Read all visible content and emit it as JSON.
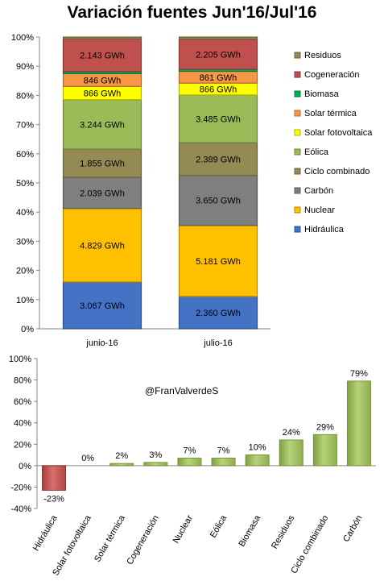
{
  "title": "Variación fuentes Jun'16/Jul'16",
  "credit": "@FranValverdeS",
  "chart_data": [
    {
      "type": "bar",
      "stacked": "percent",
      "categories": [
        "junio-16",
        "julio-16"
      ],
      "ylim": [
        0,
        100
      ],
      "yticks": [
        "0%",
        "10%",
        "20%",
        "30%",
        "40%",
        "50%",
        "60%",
        "70%",
        "80%",
        "90%",
        "100%"
      ],
      "legend_position": "right",
      "series": [
        {
          "name": "Hidráulica",
          "color": "#4472C4",
          "values": [
            3067,
            2360
          ],
          "labels": [
            "3.067 GWh",
            "2.360 GWh"
          ]
        },
        {
          "name": "Nuclear",
          "color": "#FFC000",
          "values": [
            4829,
            5181
          ],
          "labels": [
            "4.829 GWh",
            "5.181 GWh"
          ]
        },
        {
          "name": "Carbón",
          "color": "#7F7F7F",
          "values": [
            2039,
            3650
          ],
          "labels": [
            "2.039 GWh",
            "3.650 GWh"
          ]
        },
        {
          "name": "Ciclo combinado",
          "color": "#948A54",
          "values": [
            1855,
            2389
          ],
          "labels": [
            "1.855 GWh",
            "2.389 GWh"
          ]
        },
        {
          "name": "Eólica",
          "color": "#9BBB59",
          "values": [
            3244,
            3485
          ],
          "labels": [
            "3.244 GWh",
            "3.485 GWh"
          ]
        },
        {
          "name": "Solar fotovoltaica",
          "color": "#FFFF00",
          "values": [
            866,
            866
          ],
          "labels": [
            "866 GWh",
            "866 GWh"
          ]
        },
        {
          "name": "Solar térmica",
          "color": "#F79646",
          "values": [
            846,
            861
          ],
          "labels": [
            "846 GWh",
            "861 GWh"
          ]
        },
        {
          "name": "Biomasa",
          "color": "#00B050",
          "values": [
            130,
            143
          ],
          "labels": [
            "",
            ""
          ]
        },
        {
          "name": "Cogeneración",
          "color": "#C0504D",
          "values": [
            2143,
            2205
          ],
          "labels": [
            "2.143 GWh",
            "2.205 GWh"
          ]
        },
        {
          "name": "Residuos",
          "color": "#948A54",
          "values": [
            120,
            150
          ],
          "labels": [
            "",
            ""
          ]
        }
      ]
    },
    {
      "type": "bar",
      "categories": [
        "Hidráulica",
        "Solar fotovoltaica",
        "Solar térmica",
        "Cogeneración",
        "Nuclear",
        "Eólica",
        "Biomasa",
        "Residuos",
        "Ciclo combinado",
        "Carbón"
      ],
      "values": [
        -23,
        0,
        2,
        3,
        7,
        7,
        10,
        24,
        29,
        79
      ],
      "data_labels": [
        "-23%",
        "0%",
        "2%",
        "3%",
        "7%",
        "7%",
        "10%",
        "24%",
        "29%",
        "79%"
      ],
      "ylim": [
        -40,
        100
      ],
      "yticks": [
        "-40%",
        "-20%",
        "0%",
        "20%",
        "40%",
        "60%",
        "80%",
        "100%"
      ],
      "positive_color": "#9BBB59",
      "negative_color": "#C0504D"
    }
  ]
}
